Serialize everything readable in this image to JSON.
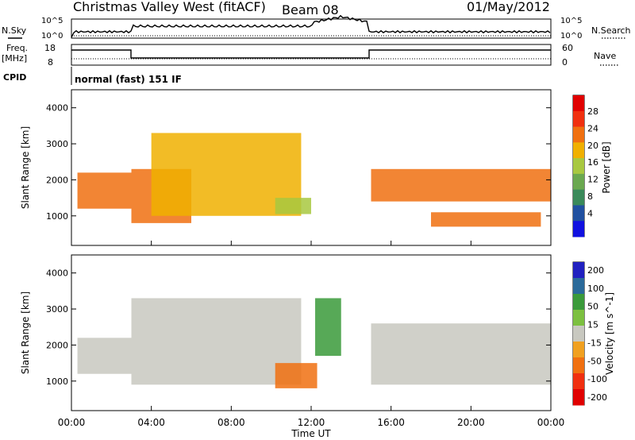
{
  "header": {
    "station": "Christmas Valley West (fitACF)",
    "beam": "Beam 08",
    "date": "01/May/2012"
  },
  "scan_panels": {
    "nsky_label": "N.Sky",
    "nsky_ticks": [
      "10^5",
      "10^0"
    ],
    "nsearch_label": "N.Search",
    "nsearch_ticks": [
      "10^5",
      "10^0"
    ],
    "freq_label": "Freq.",
    "freq_unit": "[MHz]",
    "freq_ticks": [
      "18",
      "8"
    ],
    "nave_label": "Nave",
    "nave_ticks": [
      "60",
      "0"
    ],
    "cpid_label": "CPID",
    "cpid_value": "normal (fast) 151 IF"
  },
  "colors": {
    "power_scale": [
      "#1010e0",
      "#2050a0",
      "#3a8a5a",
      "#6aa84f",
      "#a8c840",
      "#f0b000",
      "#f07010",
      "#f03010",
      "#e00000"
    ],
    "velocity_scale": [
      "#2020c0",
      "#2a6a9a",
      "#3a9a3a",
      "#7cc040",
      "#c8c8c0",
      "#f0a020",
      "#f07010",
      "#f03010",
      "#e00000"
    ]
  },
  "chart_data": [
    {
      "type": "heatmap",
      "title": "Power",
      "ylabel": "Slant Range [km]",
      "xlabel": "Time UT",
      "yticks": [
        "1000",
        "2000",
        "3000",
        "4000"
      ],
      "xticks": [
        "00:00",
        "04:00",
        "08:00",
        "12:00",
        "16:00",
        "20:00",
        "00:00"
      ],
      "ylim": [
        180,
        4500
      ],
      "xlim": [
        0,
        24
      ],
      "colorbar_label": "Power [dB]",
      "colorbar_ticks": [
        "4",
        "8",
        "12",
        "16",
        "20",
        "24",
        "28"
      ],
      "regions": [
        {
          "t0": 0.3,
          "t1": 3.0,
          "r0": 1200,
          "r1": 2200,
          "value": 26
        },
        {
          "t0": 3.0,
          "t1": 6.0,
          "r0": 800,
          "r1": 2300,
          "value": 26
        },
        {
          "t0": 4.0,
          "t1": 11.5,
          "r0": 1000,
          "r1": 3300,
          "value": 22
        },
        {
          "t0": 10.2,
          "t1": 12.0,
          "r0": 1050,
          "r1": 1500,
          "value": 18
        },
        {
          "t0": 15.0,
          "t1": 24.0,
          "r0": 1400,
          "r1": 2300,
          "value": 25
        },
        {
          "t0": 18.0,
          "t1": 23.5,
          "r0": 700,
          "r1": 1100,
          "value": 24
        }
      ]
    },
    {
      "type": "heatmap",
      "title": "Velocity",
      "ylabel": "Slant Range [km]",
      "xlabel": "Time UT",
      "yticks": [
        "1000",
        "2000",
        "3000",
        "4000"
      ],
      "xticks": [
        "00:00",
        "04:00",
        "08:00",
        "12:00",
        "16:00",
        "20:00",
        "00:00"
      ],
      "ylim": [
        180,
        4500
      ],
      "xlim": [
        0,
        24
      ],
      "colorbar_label": "Velocity [m s^-1]",
      "colorbar_ticks": [
        "200",
        "100",
        "50",
        "15",
        "-15",
        "-50",
        "-100",
        "-200"
      ],
      "regions": [
        {
          "t0": 0.3,
          "t1": 3.0,
          "r0": 1200,
          "r1": 2200,
          "value": 0
        },
        {
          "t0": 3.0,
          "t1": 11.5,
          "r0": 900,
          "r1": 3300,
          "value": 0
        },
        {
          "t0": 10.2,
          "t1": 12.3,
          "r0": 800,
          "r1": 1500,
          "value": -60
        },
        {
          "t0": 12.2,
          "t1": 13.5,
          "r0": 1700,
          "r1": 3300,
          "value": 60
        },
        {
          "t0": 15.0,
          "t1": 24.0,
          "r0": 900,
          "r1": 2600,
          "value": 0
        }
      ]
    }
  ]
}
